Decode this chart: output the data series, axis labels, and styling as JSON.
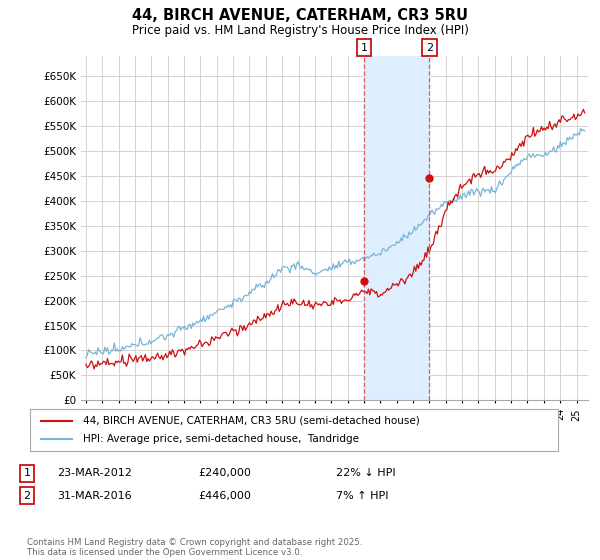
{
  "title": "44, BIRCH AVENUE, CATERHAM, CR3 5RU",
  "subtitle": "Price paid vs. HM Land Registry's House Price Index (HPI)",
  "ytick_values": [
    0,
    50000,
    100000,
    150000,
    200000,
    250000,
    300000,
    350000,
    400000,
    450000,
    500000,
    550000,
    600000,
    650000
  ],
  "ylim": [
    0,
    690000
  ],
  "hpi_color": "#7ab4d8",
  "price_color": "#cc1111",
  "sale1_year": 2012,
  "sale2_year": 2016,
  "sale1_price": 240000,
  "sale2_price": 446000,
  "shade_color": "#ddeeff",
  "legend_line1": "44, BIRCH AVENUE, CATERHAM, CR3 5RU (semi-detached house)",
  "legend_line2": "HPI: Average price, semi-detached house,  Tandridge",
  "ann1_date": "23-MAR-2012",
  "ann1_price": "£240,000",
  "ann1_note": "22% ↓ HPI",
  "ann2_date": "31-MAR-2016",
  "ann2_price": "£446,000",
  "ann2_note": "7% ↑ HPI",
  "footnote": "Contains HM Land Registry data © Crown copyright and database right 2025.\nThis data is licensed under the Open Government Licence v3.0.",
  "background_color": "#ffffff",
  "grid_color": "#cccccc"
}
